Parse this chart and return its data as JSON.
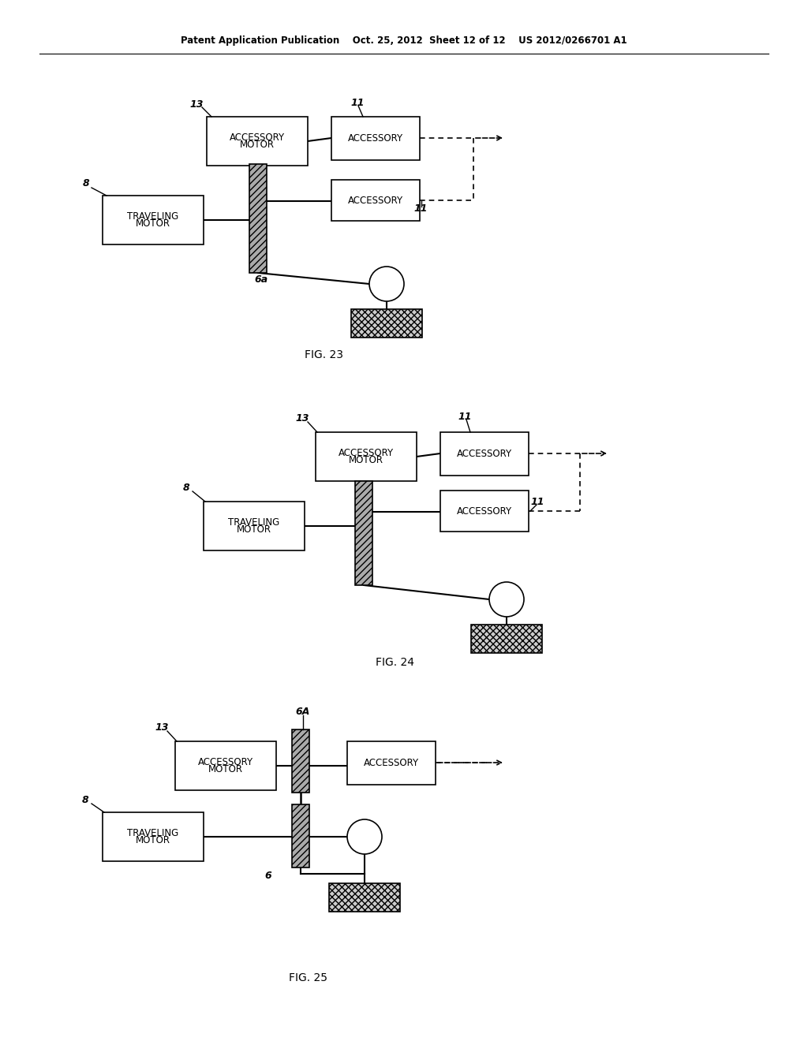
{
  "background_color": "#ffffff",
  "page_width": 10.24,
  "page_height": 13.2,
  "header": "Patent Application Publication    Oct. 25, 2012  Sheet 12 of 12    US 2012/0266701 A1",
  "fig23_caption": "FIG. 23",
  "fig24_caption": "FIG. 24",
  "fig25_caption": "FIG. 25"
}
